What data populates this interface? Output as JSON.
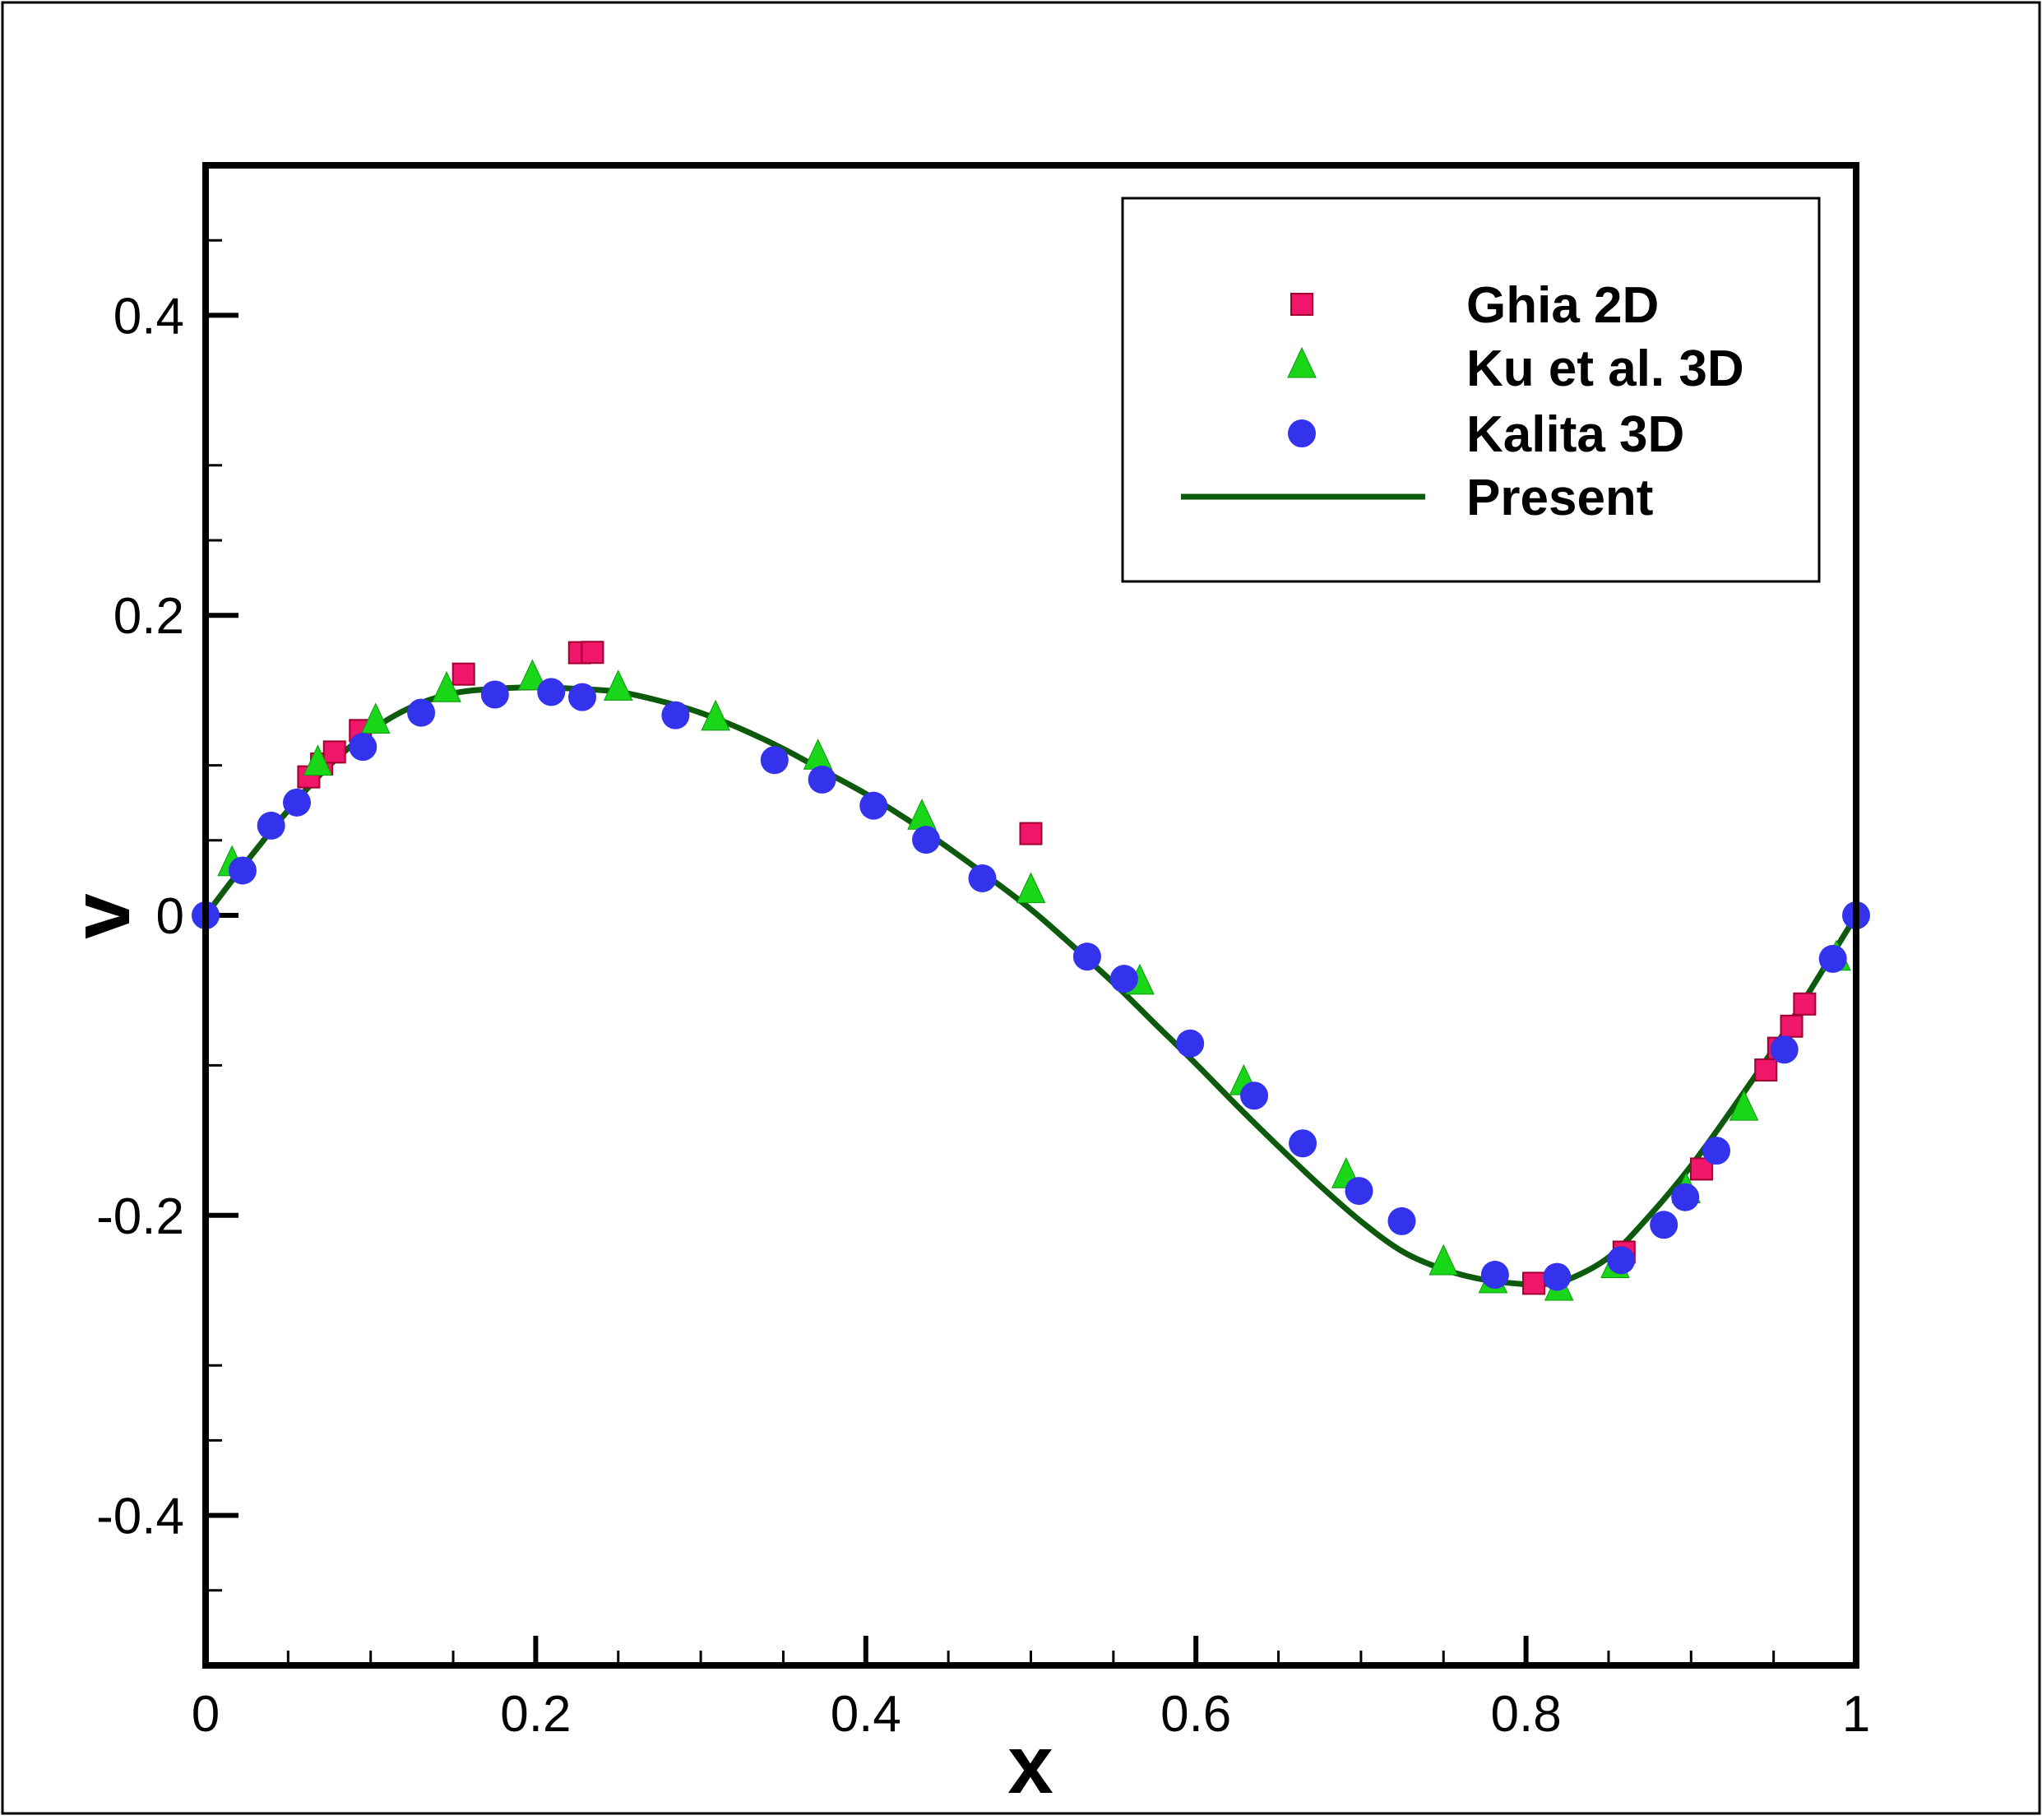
{
  "chart_data": {
    "type": "scatter",
    "title": "",
    "xlabel": "x",
    "ylabel": "v",
    "xlim": [
      0,
      1
    ],
    "ylim": [
      -0.5,
      0.5
    ],
    "xticks": [
      0,
      0.2,
      0.4,
      0.6,
      0.8,
      1
    ],
    "xtick_labels": [
      "0",
      "0.2",
      "0.4",
      "0.6",
      "0.8",
      "1"
    ],
    "yticks": [
      -0.4,
      -0.2,
      0,
      0.2,
      0.4
    ],
    "ytick_labels": [
      "-0.4",
      "-0.2",
      "0",
      "0.2",
      "0.4"
    ],
    "grid": false,
    "legend_position": "top-right",
    "series": [
      {
        "name": "Ghia 2D",
        "marker": "square",
        "color": "#f0166a",
        "x": [
          0.0625,
          0.0703,
          0.0781,
          0.0938,
          0.1563,
          0.2266,
          0.2344,
          0.5,
          0.8047,
          0.8594,
          0.9063,
          0.9453,
          0.9531,
          0.9609,
          0.9688
        ],
        "y": [
          0.0923,
          0.1009,
          0.1089,
          0.1232,
          0.1608,
          0.1751,
          0.1753,
          0.0545,
          -0.2453,
          -0.2245,
          -0.1691,
          -0.1031,
          -0.0886,
          -0.0739,
          -0.0591
        ]
      },
      {
        "name": "Ku et al. 3D",
        "marker": "triangle",
        "color": "#19d619",
        "x": [
          0.016,
          0.068,
          0.103,
          0.146,
          0.198,
          0.25,
          0.309,
          0.371,
          0.434,
          0.5,
          0.566,
          0.629,
          0.691,
          0.75,
          0.78,
          0.82,
          0.854,
          0.897,
          0.932,
          0.988
        ],
        "y": [
          0.033,
          0.1,
          0.128,
          0.149,
          0.157,
          0.15,
          0.13,
          0.104,
          0.064,
          0.015,
          -0.046,
          -0.113,
          -0.175,
          -0.233,
          -0.245,
          -0.25,
          -0.235,
          -0.185,
          -0.13,
          -0.03
        ]
      },
      {
        "name": "Kalita 3D",
        "marker": "circle",
        "color": "#3333ee",
        "x": [
          0.0,
          0.0224,
          0.0397,
          0.0553,
          0.0953,
          0.1306,
          0.1753,
          0.2094,
          0.2282,
          0.2847,
          0.3447,
          0.3735,
          0.4047,
          0.4365,
          0.4706,
          0.5341,
          0.5565,
          0.5965,
          0.6353,
          0.6647,
          0.6988,
          0.7247,
          0.7812,
          0.8188,
          0.8576,
          0.8835,
          0.8965,
          0.9153,
          0.9565,
          0.9859,
          1.0
        ],
        "y": [
          0.0,
          0.0299,
          0.0598,
          0.0752,
          0.1123,
          0.1351,
          0.1472,
          0.1489,
          0.1455,
          0.1334,
          0.1035,
          0.0905,
          0.0731,
          0.0504,
          0.0247,
          -0.0275,
          -0.0423,
          -0.0854,
          -0.1202,
          -0.152,
          -0.1837,
          -0.2039,
          -0.2396,
          -0.241,
          -0.2299,
          -0.2063,
          -0.1879,
          -0.1569,
          -0.0895,
          -0.029,
          0.0
        ]
      },
      {
        "name": "Present",
        "marker": "line",
        "color": "#0d5a0d",
        "x": [
          0,
          0.025,
          0.05,
          0.075,
          0.1,
          0.125,
          0.15,
          0.175,
          0.2,
          0.225,
          0.25,
          0.275,
          0.3,
          0.325,
          0.35,
          0.375,
          0.4,
          0.425,
          0.45,
          0.475,
          0.5,
          0.525,
          0.55,
          0.575,
          0.6,
          0.625,
          0.65,
          0.675,
          0.7,
          0.725,
          0.75,
          0.775,
          0.8,
          0.81,
          0.825,
          0.85,
          0.875,
          0.9,
          0.925,
          0.95,
          0.975,
          1.0
        ],
        "y": [
          0,
          0.036,
          0.07,
          0.1,
          0.123,
          0.139,
          0.148,
          0.151,
          0.152,
          0.151,
          0.149,
          0.143,
          0.135,
          0.124,
          0.111,
          0.096,
          0.081,
          0.064,
          0.045,
          0.025,
          0.004,
          -0.02,
          -0.045,
          -0.072,
          -0.099,
          -0.127,
          -0.154,
          -0.18,
          -0.204,
          -0.224,
          -0.236,
          -0.243,
          -0.246,
          -0.246,
          -0.243,
          -0.228,
          -0.2,
          -0.167,
          -0.129,
          -0.089,
          -0.045,
          0.0
        ]
      }
    ]
  }
}
